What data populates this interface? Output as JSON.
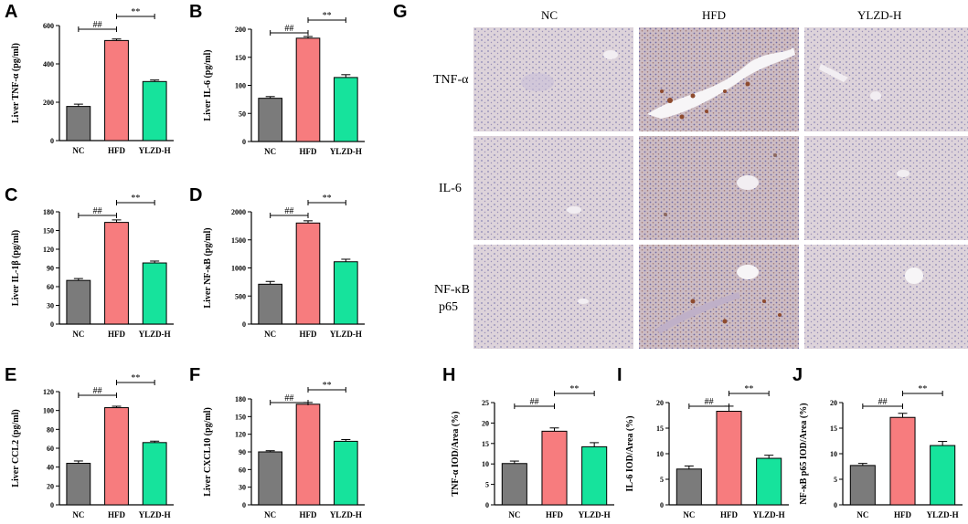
{
  "colors": {
    "NC": "#7b7b7b",
    "HFD": "#f77c7e",
    "YLZD-H": "#16e39c",
    "tissue_normal": "#ddd3da",
    "tissue_hfd": "#cfbdc4",
    "stain": "#8e4b2e"
  },
  "panels": {
    "A": "A",
    "B": "B",
    "C": "C",
    "D": "D",
    "E": "E",
    "F": "F",
    "G": "G",
    "H": "H",
    "I": "I",
    "J": "J"
  },
  "histology": {
    "col_labels": [
      "NC",
      "HFD",
      "YLZD-H"
    ],
    "row_labels": [
      "TNF-α",
      "IL-6",
      "NF-κB",
      "p65"
    ]
  },
  "chart_data": [
    {
      "panel": "A",
      "type": "bar",
      "categories": [
        "NC",
        "HFD",
        "YLZD-H"
      ],
      "values": [
        178,
        522,
        308
      ],
      "errors": [
        12,
        8,
        8
      ],
      "ylabel": "Liver TNF-α (pg/ml)",
      "ylim": [
        0,
        600
      ],
      "yticks": [
        "0",
        "200",
        "400",
        "600"
      ],
      "sig": [
        "##",
        "**"
      ]
    },
    {
      "panel": "B",
      "type": "bar",
      "categories": [
        "NC",
        "HFD",
        "YLZD-H"
      ],
      "values": [
        77,
        184,
        114
      ],
      "errors": [
        3,
        3,
        5
      ],
      "ylabel": "Liver IL-6 (pg/ml)",
      "ylim": [
        0,
        200
      ],
      "yticks": [
        "0",
        "50",
        "100",
        "150",
        "200"
      ],
      "sig": [
        "##",
        "**"
      ]
    },
    {
      "panel": "C",
      "type": "bar",
      "categories": [
        "NC",
        "HFD",
        "YLZD-H"
      ],
      "values": [
        70,
        163,
        98
      ],
      "errors": [
        3,
        4,
        3
      ],
      "ylabel": "Liver IL-1β (pg/ml)",
      "ylim": [
        0,
        180
      ],
      "yticks": [
        "0",
        "30",
        "60",
        "90",
        "120",
        "150",
        "180"
      ],
      "sig": [
        "##",
        "**"
      ]
    },
    {
      "panel": "D",
      "type": "bar",
      "categories": [
        "NC",
        "HFD",
        "YLZD-H"
      ],
      "values": [
        710,
        1800,
        1110
      ],
      "errors": [
        50,
        40,
        45
      ],
      "ylabel": "Liver NF-κB (pg/ml)",
      "ylim": [
        0,
        2000
      ],
      "yticks": [
        "0",
        "500",
        "1000",
        "1500",
        "2000"
      ],
      "sig": [
        "##",
        "**"
      ]
    },
    {
      "panel": "E",
      "type": "bar",
      "categories": [
        "NC",
        "HFD",
        "YLZD-H"
      ],
      "values": [
        44,
        103,
        66
      ],
      "errors": [
        2.5,
        1.5,
        1.5
      ],
      "ylabel": "Liver CCL2 (pg/ml)",
      "ylim": [
        0,
        120
      ],
      "yticks": [
        "0",
        "20",
        "40",
        "60",
        "80",
        "100",
        "120"
      ],
      "sig": [
        "##",
        "**"
      ]
    },
    {
      "panel": "F",
      "type": "bar",
      "categories": [
        "NC",
        "HFD",
        "YLZD-H"
      ],
      "values": [
        90,
        171,
        108
      ],
      "errors": [
        2,
        3,
        3
      ],
      "ylabel": "Liver CXCL10 (pg/ml)",
      "ylim": [
        0,
        180
      ],
      "yticks": [
        "0",
        "30",
        "60",
        "90",
        "120",
        "150",
        "180"
      ],
      "sig": [
        "##",
        "**"
      ]
    },
    {
      "panel": "H",
      "type": "bar",
      "categories": [
        "NC",
        "HFD",
        "YLZD-H"
      ],
      "values": [
        10.1,
        18.0,
        14.2
      ],
      "errors": [
        0.6,
        0.8,
        1.0
      ],
      "ylabel": "TNF-α IOD/Area (%)",
      "ylim": [
        0,
        25
      ],
      "yticks": [
        "0",
        "5",
        "10",
        "15",
        "20",
        "25"
      ],
      "sig": [
        "##",
        "**"
      ]
    },
    {
      "panel": "I",
      "type": "bar",
      "categories": [
        "NC",
        "HFD",
        "YLZD-H"
      ],
      "values": [
        7.0,
        18.3,
        9.1
      ],
      "errors": [
        0.6,
        1.0,
        0.6
      ],
      "ylabel": "IL-6 IOD/Area (%)",
      "ylim": [
        0,
        20
      ],
      "yticks": [
        "0",
        "5",
        "10",
        "15",
        "20"
      ],
      "sig": [
        "##",
        "**"
      ]
    },
    {
      "panel": "J",
      "type": "bar",
      "categories": [
        "NC",
        "HFD",
        "YLZD-H"
      ],
      "values": [
        7.7,
        17.1,
        11.6
      ],
      "errors": [
        0.4,
        0.8,
        0.8
      ],
      "ylabel": "NF-κB p65 IOD/Area (%)",
      "ylim": [
        0,
        20
      ],
      "yticks": [
        "0",
        "5",
        "10",
        "15",
        "20"
      ],
      "sig": [
        "##",
        "**"
      ]
    }
  ]
}
